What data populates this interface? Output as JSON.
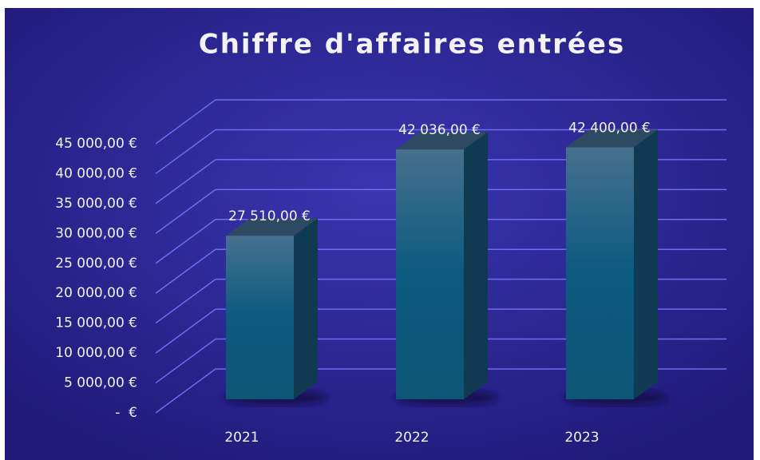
{
  "chart_data": {
    "type": "bar3d",
    "title": "Chiffre d'affaires entrées",
    "categories": [
      "2021",
      "2022",
      "2023"
    ],
    "values": [
      27510,
      42036,
      42400
    ],
    "value_labels": [
      "27 510,00 €",
      "42 036,00 €",
      "42 400,00 €"
    ],
    "color": "#0b5a80",
    "ylim": [
      0,
      45000
    ],
    "yticks": [
      {
        "value": 0,
        "label": "-  €"
      },
      {
        "value": 5000,
        "label": "5 000,00 €"
      },
      {
        "value": 10000,
        "label": "10 000,00 €"
      },
      {
        "value": 15000,
        "label": "15 000,00 €"
      },
      {
        "value": 20000,
        "label": "20 000,00 €"
      },
      {
        "value": 25000,
        "label": "25 000,00 €"
      },
      {
        "value": 30000,
        "label": "30 000,00 €"
      },
      {
        "value": 35000,
        "label": "35 000,00 €"
      },
      {
        "value": 40000,
        "label": "40 000,00 €"
      },
      {
        "value": 45000,
        "label": "45 000,00 €"
      }
    ],
    "grid": true
  }
}
